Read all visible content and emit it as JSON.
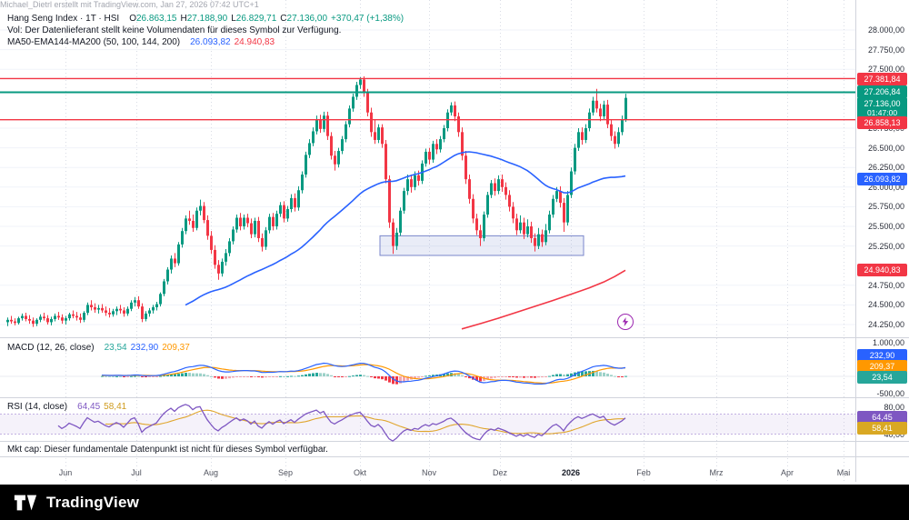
{
  "watermark": "Michael_Dietrl erstellt mit TradingView.com, Jan 27, 2026 07:42 UTC+1",
  "legend": {
    "title": "Hang Seng Index · 1T · HSI",
    "o_label": "O",
    "o_value": "26.863,15",
    "h_label": "H",
    "h_value": "27.188,90",
    "l_label": "L",
    "l_value": "26.829,71",
    "c_label": "C",
    "c_value": "27.136,00",
    "change": "+370,47 (+1,38%)"
  },
  "vol_notice": "Vol: Der Datenlieferant stellt keine Volumendaten für dieses Symbol zur Verfügung.",
  "ma_legend": {
    "title": "MA50-EMA144-MA200 (50, 100, 144, 200)",
    "ma50": "26.093,82",
    "ma200": "24.940,83"
  },
  "macd_legend": {
    "title": "MACD (12, 26, close)",
    "hist": "23,54",
    "macd": "232,90",
    "signal": "209,37"
  },
  "rsi_legend": {
    "title": "RSI (14, close)",
    "rsi": "64,45",
    "ma": "58,41"
  },
  "mktcap_notice": "Mkt cap: Dieser fundamentale Datenpunkt ist nicht für dieses Symbol verfügbar.",
  "footer": {
    "brand": "TradingView"
  },
  "price_scale": {
    "labels": [
      {
        "v": 28000,
        "t": "28.000,00"
      },
      {
        "v": 27750,
        "t": "27.750,00"
      },
      {
        "v": 27500,
        "t": "27.500,00"
      },
      {
        "v": 26750,
        "t": "26.750,00"
      },
      {
        "v": 26500,
        "t": "26.500,00"
      },
      {
        "v": 26250,
        "t": "26.250,00"
      },
      {
        "v": 26000,
        "t": "26.000,00"
      },
      {
        "v": 25750,
        "t": "25.750,00"
      },
      {
        "v": 25500,
        "t": "25.500,00"
      },
      {
        "v": 25250,
        "t": "25.250,00"
      },
      {
        "v": 24750,
        "t": "24.750,00"
      },
      {
        "v": 24500,
        "t": "24.500,00"
      },
      {
        "v": 24250,
        "t": "24.250,00"
      }
    ]
  },
  "macd_scale": [
    {
      "v": 1000,
      "t": "1.000,00"
    },
    {
      "v": -500,
      "t": "-500,00"
    }
  ],
  "rsi_scale": [
    {
      "v": 80,
      "t": "80,00"
    },
    {
      "v": 40,
      "t": "40,00"
    }
  ],
  "price_tags": [
    {
      "t": "27.381,84",
      "bg": "#f23645"
    },
    {
      "t": "27.206,84",
      "bg": "#089981"
    },
    {
      "t": "27.136,00",
      "sub": "01:47:00",
      "bg": "#089981"
    },
    {
      "t": "26.858,13",
      "bg": "#f23645"
    },
    {
      "t": "26.093,82",
      "bg": "#2962ff"
    },
    {
      "t": "24.940,83",
      "bg": "#f23645"
    }
  ],
  "macd_tags": [
    {
      "t": "232,90",
      "bg": "#2962ff"
    },
    {
      "t": "209,37",
      "bg": "#ff9800"
    },
    {
      "t": "23,54",
      "bg": "#26a69a"
    }
  ],
  "rsi_tags": [
    {
      "t": "64,45",
      "bg": "#7e57c2"
    },
    {
      "t": "58,41",
      "bg": "#d9a823"
    }
  ],
  "time_axis": {
    "labels": [
      "Jun",
      "Jul",
      "Aug",
      "Sep",
      "Okt",
      "Nov",
      "Dez",
      "2026",
      "Feb",
      "Mrz",
      "Apr",
      "Mai"
    ]
  },
  "chart_data": {
    "type": "candlestick",
    "symbol": "Hang Seng Index",
    "exchange": "HSI",
    "timeframe": "1T",
    "last_bar": {
      "open": 26863.15,
      "high": 27188.9,
      "low": 26829.71,
      "close": 27136.0,
      "change_abs": 370.47,
      "change_pct": 1.38
    },
    "levels": {
      "resistance_upper": 27381.84,
      "resistance_mid": 27206.84,
      "resistance_lower": 26858.13
    },
    "overlays": {
      "ma50_last": 26093.82,
      "ma200_last": 24940.83
    },
    "ylim": [
      24100,
      28100
    ],
    "y_gridstep": 250,
    "x_axis_months": [
      "Jun",
      "Jul",
      "Aug",
      "Sep",
      "Okt",
      "Nov",
      "Dez",
      "2026",
      "Feb",
      "Mrz",
      "Apr",
      "Mai"
    ],
    "zone": {
      "from_index": 103,
      "to_index": 158,
      "top": 25380,
      "bottom": 25130
    },
    "marker": {
      "symbol": "lightning-bolt"
    },
    "indicators": {
      "macd": {
        "fast": 12,
        "slow": 26,
        "signal": 9,
        "last": {
          "hist": 23.54,
          "macd": 232.9,
          "signal": 209.37
        },
        "scale": [
          1000,
          -500
        ]
      },
      "rsi": {
        "period": 14,
        "last": 64.45,
        "ma_last": 58.41,
        "scale": [
          80,
          40
        ],
        "band": [
          70,
          30
        ]
      }
    },
    "ma200_points": [
      [
        125,
        24195
      ],
      [
        130,
        24260
      ],
      [
        135,
        24330
      ],
      [
        140,
        24405
      ],
      [
        145,
        24480
      ],
      [
        150,
        24555
      ],
      [
        155,
        24635
      ],
      [
        160,
        24715
      ],
      [
        164,
        24790
      ],
      [
        167,
        24860
      ],
      [
        170,
        24941
      ]
    ],
    "candles": [
      [
        24280,
        24340,
        24230,
        24310
      ],
      [
        24310,
        24360,
        24260,
        24290
      ],
      [
        24290,
        24330,
        24240,
        24270
      ],
      [
        24270,
        24350,
        24250,
        24330
      ],
      [
        24330,
        24390,
        24300,
        24360
      ],
      [
        24360,
        24400,
        24290,
        24320
      ],
      [
        24320,
        24370,
        24260,
        24300
      ],
      [
        24300,
        24340,
        24220,
        24260
      ],
      [
        24260,
        24330,
        24230,
        24310
      ],
      [
        24310,
        24380,
        24280,
        24350
      ],
      [
        24350,
        24400,
        24300,
        24330
      ],
      [
        24330,
        24370,
        24250,
        24280
      ],
      [
        24280,
        24350,
        24240,
        24320
      ],
      [
        24320,
        24390,
        24290,
        24360
      ],
      [
        24360,
        24410,
        24310,
        24340
      ],
      [
        24340,
        24380,
        24260,
        24300
      ],
      [
        24300,
        24360,
        24250,
        24330
      ],
      [
        24330,
        24400,
        24300,
        24380
      ],
      [
        24380,
        24430,
        24330,
        24360
      ],
      [
        24360,
        24410,
        24300,
        24340
      ],
      [
        24340,
        24390,
        24270,
        24310
      ],
      [
        24310,
        24420,
        24280,
        24400
      ],
      [
        24400,
        24530,
        24370,
        24500
      ],
      [
        24500,
        24560,
        24430,
        24470
      ],
      [
        24470,
        24520,
        24400,
        24440
      ],
      [
        24440,
        24500,
        24390,
        24460
      ],
      [
        24460,
        24510,
        24400,
        24430
      ],
      [
        24430,
        24480,
        24360,
        24400
      ],
      [
        24400,
        24460,
        24340,
        24380
      ],
      [
        24380,
        24450,
        24350,
        24420
      ],
      [
        24420,
        24480,
        24370,
        24450
      ],
      [
        24450,
        24500,
        24390,
        24430
      ],
      [
        24430,
        24470,
        24350,
        24390
      ],
      [
        24390,
        24480,
        24360,
        24450
      ],
      [
        24450,
        24560,
        24420,
        24530
      ],
      [
        24530,
        24600,
        24480,
        24560
      ],
      [
        24560,
        24610,
        24450,
        24480
      ],
      [
        24480,
        24520,
        24280,
        24320
      ],
      [
        24320,
        24420,
        24290,
        24390
      ],
      [
        24390,
        24460,
        24350,
        24430
      ],
      [
        24430,
        24500,
        24390,
        24470
      ],
      [
        24470,
        24540,
        24430,
        24510
      ],
      [
        24510,
        24660,
        24480,
        24640
      ],
      [
        24640,
        24830,
        24610,
        24800
      ],
      [
        24800,
        24980,
        24760,
        24950
      ],
      [
        24950,
        25130,
        24900,
        25090
      ],
      [
        25090,
        25160,
        24980,
        25030
      ],
      [
        25030,
        25300,
        25000,
        25270
      ],
      [
        25270,
        25480,
        25230,
        25440
      ],
      [
        25440,
        25640,
        25400,
        25600
      ],
      [
        25600,
        25700,
        25520,
        25570
      ],
      [
        25570,
        25650,
        25430,
        25480
      ],
      [
        25480,
        25740,
        25450,
        25700
      ],
      [
        25700,
        25840,
        25640,
        25760
      ],
      [
        25760,
        25810,
        25540,
        25580
      ],
      [
        25580,
        25640,
        25330,
        25380
      ],
      [
        25380,
        25440,
        25150,
        25200
      ],
      [
        25200,
        25260,
        24960,
        25010
      ],
      [
        25010,
        25070,
        24820,
        24900
      ],
      [
        24900,
        25090,
        24860,
        25050
      ],
      [
        25050,
        25210,
        25000,
        25160
      ],
      [
        25160,
        25350,
        25120,
        25310
      ],
      [
        25310,
        25500,
        25270,
        25460
      ],
      [
        25460,
        25650,
        25420,
        25610
      ],
      [
        25610,
        25670,
        25450,
        25500
      ],
      [
        25500,
        25650,
        25460,
        25610
      ],
      [
        25610,
        25660,
        25490,
        25540
      ],
      [
        25540,
        25600,
        25350,
        25400
      ],
      [
        25400,
        25610,
        25360,
        25570
      ],
      [
        25570,
        25620,
        25300,
        25350
      ],
      [
        25350,
        25410,
        25180,
        25240
      ],
      [
        25240,
        25490,
        25200,
        25450
      ],
      [
        25450,
        25660,
        25410,
        25620
      ],
      [
        25620,
        25670,
        25450,
        25500
      ],
      [
        25500,
        25700,
        25460,
        25660
      ],
      [
        25660,
        25810,
        25620,
        25770
      ],
      [
        25770,
        25820,
        25550,
        25600
      ],
      [
        25600,
        25760,
        25560,
        25720
      ],
      [
        25720,
        25910,
        25680,
        25860
      ],
      [
        25860,
        25920,
        25690,
        25740
      ],
      [
        25740,
        26010,
        25700,
        25960
      ],
      [
        25960,
        26200,
        25920,
        26160
      ],
      [
        26160,
        26450,
        26120,
        26410
      ],
      [
        26410,
        26610,
        26370,
        26560
      ],
      [
        26560,
        26760,
        26520,
        26710
      ],
      [
        26710,
        26910,
        26670,
        26860
      ],
      [
        26860,
        26920,
        26690,
        26740
      ],
      [
        26740,
        26960,
        26700,
        26910
      ],
      [
        26910,
        26960,
        26600,
        26650
      ],
      [
        26650,
        26700,
        26350,
        26400
      ],
      [
        26400,
        26460,
        26210,
        26290
      ],
      [
        26290,
        26500,
        26250,
        26460
      ],
      [
        26460,
        26650,
        26420,
        26610
      ],
      [
        26610,
        26840,
        26570,
        26800
      ],
      [
        26800,
        27040,
        26760,
        27000
      ],
      [
        27000,
        27190,
        26960,
        27150
      ],
      [
        27150,
        27340,
        27110,
        27300
      ],
      [
        27300,
        27400,
        27250,
        27370
      ],
      [
        27370,
        27410,
        27150,
        27200
      ],
      [
        27200,
        27250,
        26900,
        26950
      ],
      [
        26950,
        27010,
        26640,
        26700
      ],
      [
        26700,
        26860,
        26550,
        26600
      ],
      [
        26600,
        26800,
        26560,
        26760
      ],
      [
        26760,
        26800,
        26500,
        26550
      ],
      [
        26550,
        26600,
        26050,
        26100
      ],
      [
        26100,
        26150,
        25480,
        25550
      ],
      [
        25550,
        25600,
        25150,
        25250
      ],
      [
        25250,
        25480,
        25200,
        25420
      ],
      [
        25420,
        25740,
        25380,
        25700
      ],
      [
        25700,
        25990,
        25660,
        25950
      ],
      [
        25950,
        26160,
        25900,
        26100
      ],
      [
        26100,
        26160,
        25930,
        26000
      ],
      [
        26000,
        26200,
        25960,
        26150
      ],
      [
        26150,
        26210,
        26020,
        26080
      ],
      [
        26080,
        26340,
        26040,
        26300
      ],
      [
        26300,
        26490,
        26260,
        26450
      ],
      [
        26450,
        26500,
        26290,
        26350
      ],
      [
        26350,
        26590,
        26310,
        26550
      ],
      [
        26550,
        26610,
        26420,
        26480
      ],
      [
        26480,
        26650,
        26440,
        26610
      ],
      [
        26610,
        26790,
        26570,
        26750
      ],
      [
        26750,
        26990,
        26710,
        26950
      ],
      [
        26950,
        27080,
        26910,
        27040
      ],
      [
        27040,
        27090,
        26840,
        26900
      ],
      [
        26900,
        26950,
        26640,
        26700
      ],
      [
        26700,
        26760,
        26340,
        26400
      ],
      [
        26400,
        26460,
        26040,
        26100
      ],
      [
        26100,
        26160,
        25790,
        25850
      ],
      [
        25850,
        25910,
        25540,
        25600
      ],
      [
        25600,
        25660,
        25390,
        25450
      ],
      [
        25450,
        25520,
        25250,
        25350
      ],
      [
        25350,
        25690,
        25310,
        25650
      ],
      [
        25650,
        25940,
        25610,
        25900
      ],
      [
        25900,
        26090,
        25860,
        26050
      ],
      [
        26050,
        26110,
        25890,
        25950
      ],
      [
        25950,
        26150,
        25910,
        26100
      ],
      [
        26100,
        26160,
        25940,
        26000
      ],
      [
        26000,
        26060,
        25840,
        25900
      ],
      [
        25900,
        25960,
        25690,
        25750
      ],
      [
        25750,
        25810,
        25540,
        25600
      ],
      [
        25600,
        25660,
        25390,
        25450
      ],
      [
        25450,
        25640,
        25410,
        25550
      ],
      [
        25550,
        25610,
        25340,
        25400
      ],
      [
        25400,
        25590,
        25360,
        25500
      ],
      [
        25500,
        25560,
        25290,
        25350
      ],
      [
        25350,
        25410,
        25180,
        25250
      ],
      [
        25250,
        25480,
        25210,
        25400
      ],
      [
        25400,
        25460,
        25240,
        25300
      ],
      [
        25300,
        25530,
        25260,
        25450
      ],
      [
        25450,
        25700,
        25410,
        25650
      ],
      [
        25650,
        25900,
        25610,
        25850
      ],
      [
        25850,
        26000,
        25810,
        25950
      ],
      [
        25950,
        26010,
        25740,
        25800
      ],
      [
        25800,
        25860,
        25430,
        25550
      ],
      [
        25550,
        25950,
        25510,
        25900
      ],
      [
        25900,
        26250,
        25860,
        26200
      ],
      [
        26200,
        26550,
        26160,
        26500
      ],
      [
        26500,
        26750,
        26460,
        26700
      ],
      [
        26700,
        26760,
        26540,
        26600
      ],
      [
        26600,
        26800,
        26560,
        26750
      ],
      [
        26750,
        27000,
        26710,
        26950
      ],
      [
        26950,
        27150,
        26910,
        27100
      ],
      [
        27100,
        27250,
        26950,
        27000
      ],
      [
        27000,
        27060,
        26840,
        26900
      ],
      [
        26900,
        27100,
        26860,
        27050
      ],
      [
        27050,
        27110,
        26750,
        26800
      ],
      [
        26800,
        26860,
        26590,
        26650
      ],
      [
        26650,
        26710,
        26490,
        26550
      ],
      [
        26550,
        26760,
        26510,
        26700
      ],
      [
        26700,
        26910,
        26660,
        26860
      ],
      [
        26863,
        27189,
        26830,
        27136
      ]
    ]
  }
}
